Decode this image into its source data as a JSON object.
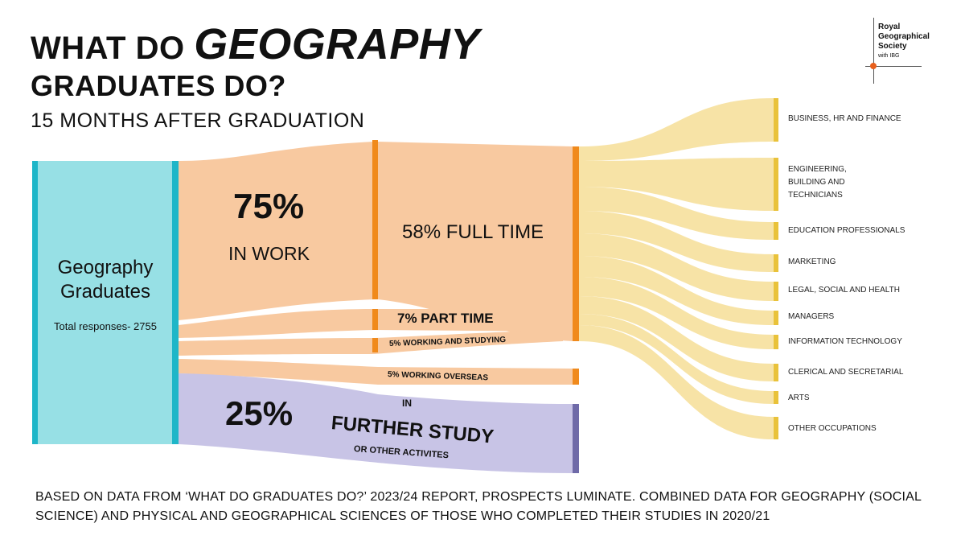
{
  "header": {
    "title_prefix": "WHAT DO",
    "title_emphasis": "GEOGRAPHY",
    "title_line2": "GRADUATES DO?",
    "subtitle": "15 MONTHS AFTER GRADUATION"
  },
  "logo": {
    "line1": "Royal",
    "line2": "Geographical",
    "line3": "Society",
    "line4": "with IBG"
  },
  "colors": {
    "graduates": "#97e0e5",
    "graduates_bar": "#1eb6c8",
    "work": "#f8c9a0",
    "work_bar": "#f08a1c",
    "study": "#c8c4e6",
    "study_bar": "#6f6aa8",
    "occupations": "#f7e3a6",
    "occupations_bar": "#e9c23a"
  },
  "graduates": {
    "label_line1": "Geography",
    "label_line2": "Graduates",
    "total_label": "Total responses- 2755"
  },
  "flows": {
    "work_pct": "75%",
    "work_label": "IN WORK",
    "full_time": "58% FULL TIME",
    "part_time": "7% PART TIME",
    "working_studying": "5% WORKING AND STUDYING",
    "working_overseas": "5% WORKING OVERSEAS",
    "study_pct": "25%",
    "study_in": "IN",
    "study_label": "FURTHER STUDY",
    "study_other": "OR OTHER ACTIVITES"
  },
  "chart_data": {
    "type": "sankey",
    "nodes": [
      "Geography Graduates",
      "In work",
      "Further study or other activities",
      "Full time",
      "Part time",
      "Working and studying",
      "Working overseas"
    ],
    "links": [
      {
        "source": "Geography Graduates",
        "target": "In work",
        "value": 75
      },
      {
        "source": "Geography Graduates",
        "target": "Further study or other activities",
        "value": 25
      },
      {
        "source": "In work",
        "target": "Full time",
        "value": 58
      },
      {
        "source": "In work",
        "target": "Part time",
        "value": 7
      },
      {
        "source": "In work",
        "target": "Working and studying",
        "value": 5
      },
      {
        "source": "In work",
        "target": "Working overseas",
        "value": 5
      }
    ],
    "occupations": [
      "BUSINESS, HR AND FINANCE",
      "ENGINEERING, BUILDING AND TECHNICIANS",
      "EDUCATION PROFESSIONALS",
      "MARKETING",
      "LEGAL, SOCIAL AND HEALTH",
      "MANAGERS",
      "INFORMATION TECHNOLOGY",
      "CLERICAL AND SECRETARIAL",
      "ARTS",
      "OTHER OCCUPATIONS"
    ]
  },
  "occupation_labels": {
    "business": "BUSINESS, HR AND FINANCE",
    "engineering_l1": "ENGINEERING,",
    "engineering_l2": "BUILDING AND",
    "engineering_l3": "TECHNICIANS",
    "education": "EDUCATION PROFESSIONALS",
    "marketing": "MARKETING",
    "legal": "LEGAL, SOCIAL AND HEALTH",
    "managers": "MANAGERS",
    "it": "INFORMATION TECHNOLOGY",
    "clerical": "CLERICAL AND SECRETARIAL",
    "arts": "ARTS",
    "other": "OTHER OCCUPATIONS"
  },
  "footnote": "BASED ON DATA FROM ‘WHAT DO GRADUATES DO?’ 2023/24 REPORT, PROSPECTS LUMINATE. COMBINED DATA FOR GEOGRAPHY (SOCIAL SCIENCE) AND PHYSICAL AND GEOGRAPHICAL SCIENCES OF THOSE WHO COMPLETED THEIR STUDIES IN 2020/21"
}
